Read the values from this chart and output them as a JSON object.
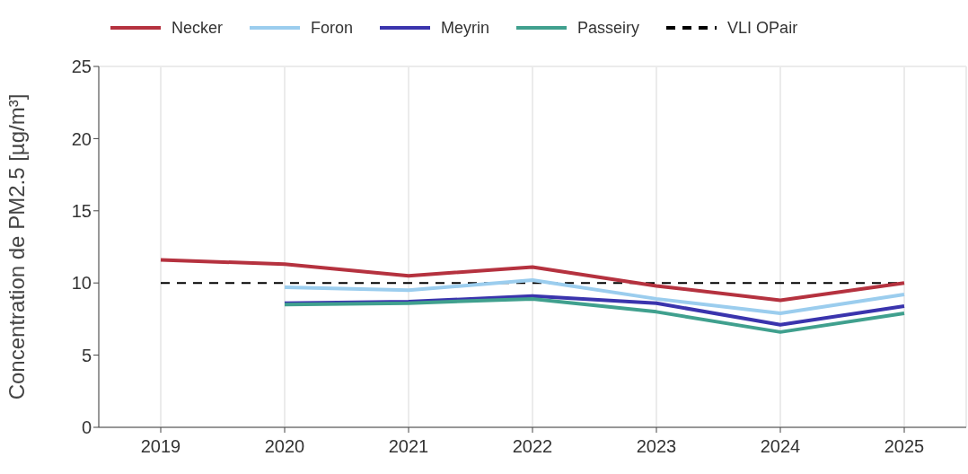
{
  "chart_data": {
    "type": "line",
    "ylabel": "Concentration de PM2.5 [µg/m³]",
    "x": [
      2019,
      2020,
      2021,
      2022,
      2023,
      2024,
      2025
    ],
    "xlim": [
      2018.5,
      2025.5
    ],
    "xticks": [
      2019,
      2020,
      2021,
      2022,
      2023,
      2024,
      2025
    ],
    "ylim": [
      0,
      25
    ],
    "yticks": [
      0,
      5,
      10,
      15,
      20,
      25
    ],
    "grid": true,
    "legend": "top",
    "line_style": "solid",
    "marker": "none",
    "series": [
      {
        "name": "Necker",
        "color": "#b5323f",
        "values": [
          11.6,
          11.3,
          10.5,
          11.1,
          9.8,
          8.8,
          10.0
        ]
      },
      {
        "name": "Foron",
        "color": "#9bcdee",
        "values": [
          null,
          9.7,
          9.5,
          10.2,
          8.9,
          7.9,
          9.2
        ]
      },
      {
        "name": "Meyrin",
        "color": "#3a34ad",
        "values": [
          null,
          8.6,
          8.7,
          9.1,
          8.6,
          7.1,
          8.4
        ]
      },
      {
        "name": "Passeiry",
        "color": "#40a08e",
        "values": [
          null,
          8.5,
          8.6,
          8.9,
          8.0,
          6.6,
          7.9
        ]
      }
    ],
    "ref_lines": [
      {
        "axis": "y",
        "value": 10,
        "label": "VLI OPair",
        "color": "#000000",
        "line_style": "dashed"
      }
    ]
  }
}
